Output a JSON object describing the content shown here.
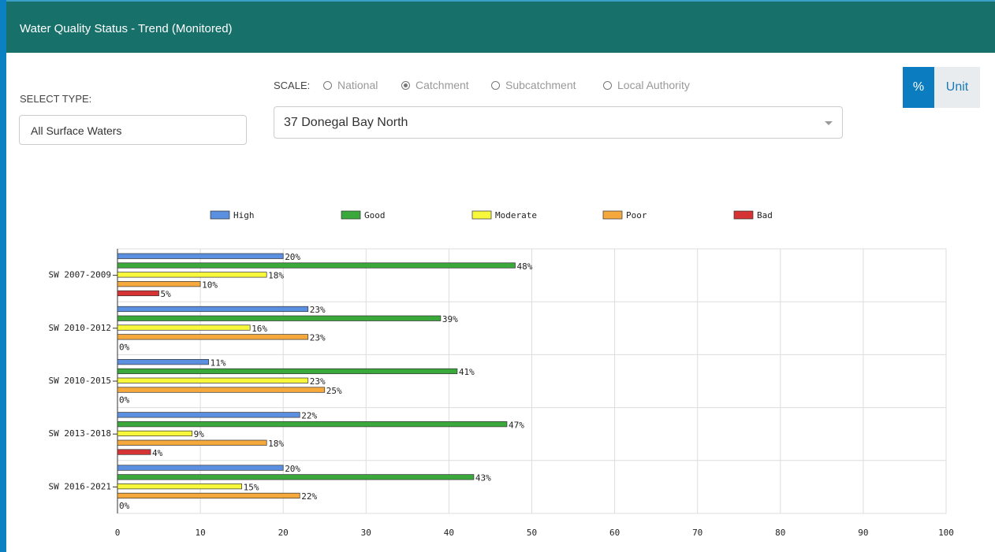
{
  "header": {
    "title": "Water Quality Status - Trend (Monitored)"
  },
  "controls": {
    "select_type_label": "SELECT TYPE:",
    "select_type_value": "All Surface Waters",
    "scale_label": "SCALE:",
    "scale_options": [
      {
        "label": "National",
        "checked": false
      },
      {
        "label": "Catchment",
        "checked": true
      },
      {
        "label": "Subcatchment",
        "checked": false
      },
      {
        "label": "Local Authority",
        "checked": false
      }
    ],
    "catchment_value": "37 Donegal Bay North",
    "toggle": [
      {
        "label": "%",
        "active": true
      },
      {
        "label": "Unit",
        "active": false
      }
    ]
  },
  "chart_data": {
    "type": "bar",
    "orientation": "horizontal",
    "categories": [
      "SW 2007-2009",
      "SW 2010-2012",
      "SW 2010-2015",
      "SW 2013-2018",
      "SW 2016-2021"
    ],
    "series": [
      {
        "name": "High",
        "color": "#5b8fe0",
        "values": [
          20,
          23,
          11,
          22,
          20
        ],
        "value_labels": [
          "20%",
          "23%",
          "11%",
          "22%",
          "20%"
        ]
      },
      {
        "name": "Good",
        "color": "#3aa83a",
        "values": [
          48,
          39,
          41,
          47,
          43
        ],
        "value_labels": [
          "48%",
          "39%",
          "41%",
          "47%",
          "43%"
        ]
      },
      {
        "name": "Moderate",
        "color": "#f7f73c",
        "values": [
          18,
          16,
          23,
          9,
          15
        ],
        "value_labels": [
          "18%",
          "16%",
          "23%",
          "9%",
          "15%"
        ]
      },
      {
        "name": "Poor",
        "color": "#f5a83c",
        "values": [
          10,
          23,
          25,
          18,
          22
        ],
        "value_labels": [
          "10%",
          "23%",
          "25%",
          "18%",
          "22%"
        ]
      },
      {
        "name": "Bad",
        "color": "#d63434",
        "values": [
          5,
          0,
          0,
          4,
          0
        ],
        "value_labels": [
          "5%",
          "0%",
          "0%",
          "4%",
          "0%"
        ]
      }
    ],
    "xlim": [
      0,
      100
    ],
    "xticks": [
      0,
      10,
      20,
      30,
      40,
      50,
      60,
      70,
      80,
      90,
      100
    ],
    "grid": true,
    "legend": "top"
  }
}
